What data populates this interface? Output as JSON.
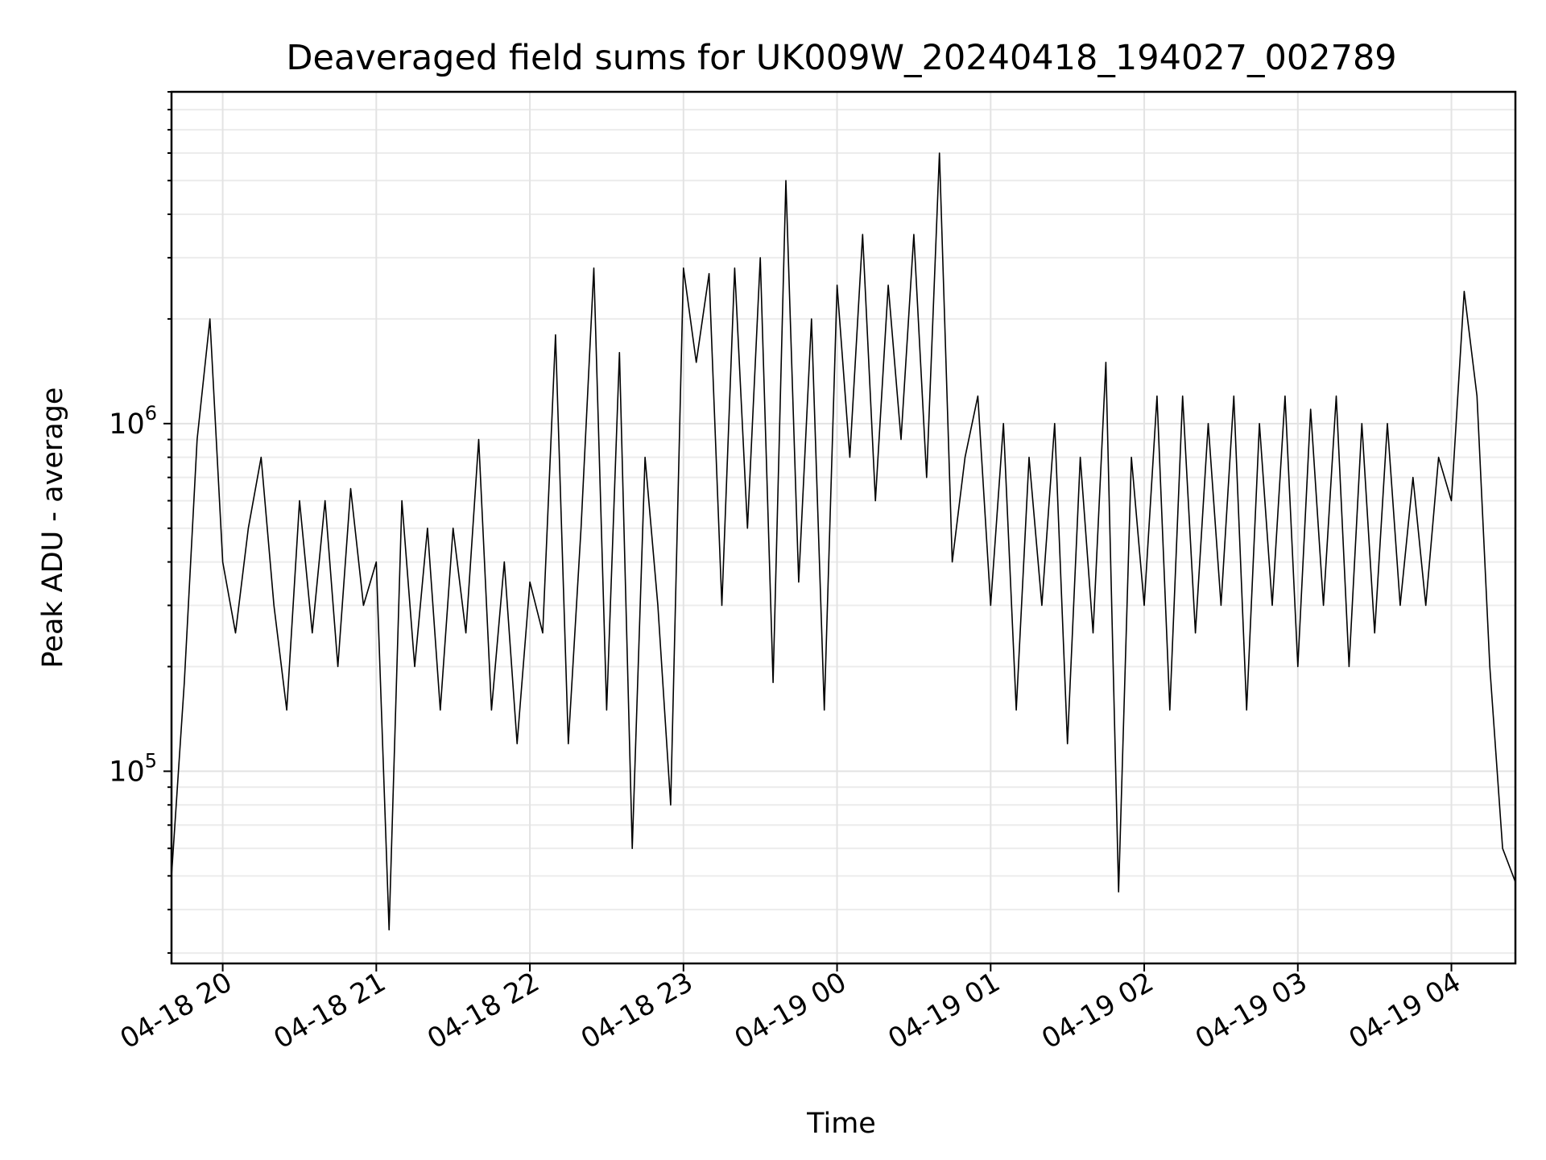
{
  "chart_data": {
    "type": "line",
    "title": "Deaveraged field sums for UK009W_20240418_194027_002789",
    "xlabel": "Time",
    "ylabel": "Peak ADU - average",
    "yscale": "log",
    "ylim": [
      28000,
      9000000
    ],
    "xlim": [
      "2024-04-18 19:40",
      "2024-04-19 04:25"
    ],
    "x_ticks": [
      "04-18 20",
      "04-18 21",
      "04-18 22",
      "04-18 23",
      "04-19 00",
      "04-19 01",
      "04-19 02",
      "04-19 03",
      "04-19 04"
    ],
    "y_ticks": [
      {
        "base": "10",
        "exp": "5",
        "value": 100000
      },
      {
        "base": "10",
        "exp": "6",
        "value": 1000000
      }
    ],
    "grid": true,
    "line_color": "#000000",
    "series": [
      {
        "x": [
          "2024-04-18 19:40",
          "2024-04-18 19:45",
          "2024-04-18 19:50",
          "2024-04-18 19:55",
          "2024-04-18 20:00",
          "2024-04-18 20:05",
          "2024-04-18 20:10",
          "2024-04-18 20:15",
          "2024-04-18 20:20",
          "2024-04-18 20:25",
          "2024-04-18 20:30",
          "2024-04-18 20:35",
          "2024-04-18 20:40",
          "2024-04-18 20:45",
          "2024-04-18 20:50",
          "2024-04-18 20:55",
          "2024-04-18 21:00",
          "2024-04-18 21:05",
          "2024-04-18 21:10",
          "2024-04-18 21:15",
          "2024-04-18 21:20",
          "2024-04-18 21:25",
          "2024-04-18 21:30",
          "2024-04-18 21:35",
          "2024-04-18 21:40",
          "2024-04-18 21:45",
          "2024-04-18 21:50",
          "2024-04-18 21:55",
          "2024-04-18 22:00",
          "2024-04-18 22:05",
          "2024-04-18 22:10",
          "2024-04-18 22:15",
          "2024-04-18 22:20",
          "2024-04-18 22:25",
          "2024-04-18 22:30",
          "2024-04-18 22:35",
          "2024-04-18 22:40",
          "2024-04-18 22:45",
          "2024-04-18 22:50",
          "2024-04-18 22:55",
          "2024-04-18 23:00",
          "2024-04-18 23:05",
          "2024-04-18 23:10",
          "2024-04-18 23:15",
          "2024-04-18 23:20",
          "2024-04-18 23:25",
          "2024-04-18 23:30",
          "2024-04-18 23:35",
          "2024-04-18 23:40",
          "2024-04-18 23:45",
          "2024-04-18 23:50",
          "2024-04-18 23:55",
          "2024-04-19 00:00",
          "2024-04-19 00:05",
          "2024-04-19 00:10",
          "2024-04-19 00:15",
          "2024-04-19 00:20",
          "2024-04-19 00:25",
          "2024-04-19 00:30",
          "2024-04-19 00:35",
          "2024-04-19 00:40",
          "2024-04-19 00:45",
          "2024-04-19 00:50",
          "2024-04-19 00:55",
          "2024-04-19 01:00",
          "2024-04-19 01:05",
          "2024-04-19 01:10",
          "2024-04-19 01:15",
          "2024-04-19 01:20",
          "2024-04-19 01:25",
          "2024-04-19 01:30",
          "2024-04-19 01:35",
          "2024-04-19 01:40",
          "2024-04-19 01:45",
          "2024-04-19 01:50",
          "2024-04-19 01:55",
          "2024-04-19 02:00",
          "2024-04-19 02:05",
          "2024-04-19 02:10",
          "2024-04-19 02:15",
          "2024-04-19 02:20",
          "2024-04-19 02:25",
          "2024-04-19 02:30",
          "2024-04-19 02:35",
          "2024-04-19 02:40",
          "2024-04-19 02:45",
          "2024-04-19 02:50",
          "2024-04-19 02:55",
          "2024-04-19 03:00",
          "2024-04-19 03:05",
          "2024-04-19 03:10",
          "2024-04-19 03:15",
          "2024-04-19 03:20",
          "2024-04-19 03:25",
          "2024-04-19 03:30",
          "2024-04-19 03:35",
          "2024-04-19 03:40",
          "2024-04-19 03:45",
          "2024-04-19 03:50",
          "2024-04-19 03:55",
          "2024-04-19 04:00",
          "2024-04-19 04:05",
          "2024-04-19 04:10",
          "2024-04-19 04:15",
          "2024-04-19 04:20",
          "2024-04-19 04:25"
        ],
        "y": [
          50000,
          180000,
          900000,
          2000000,
          400000,
          250000,
          500000,
          800000,
          300000,
          150000,
          600000,
          250000,
          600000,
          200000,
          650000,
          300000,
          400000,
          35000,
          600000,
          200000,
          500000,
          150000,
          500000,
          250000,
          900000,
          150000,
          400000,
          120000,
          350000,
          250000,
          1800000,
          120000,
          500000,
          2800000,
          150000,
          1600000,
          60000,
          800000,
          300000,
          80000,
          2800000,
          1500000,
          2700000,
          300000,
          2800000,
          500000,
          3000000,
          180000,
          5000000,
          350000,
          2000000,
          150000,
          2500000,
          800000,
          3500000,
          600000,
          2500000,
          900000,
          3500000,
          700000,
          6000000,
          400000,
          800000,
          1200000,
          300000,
          1000000,
          150000,
          800000,
          300000,
          1000000,
          120000,
          800000,
          250000,
          1500000,
          45000,
          800000,
          300000,
          1200000,
          150000,
          1200000,
          250000,
          1000000,
          300000,
          1200000,
          150000,
          1000000,
          300000,
          1200000,
          200000,
          1100000,
          300000,
          1200000,
          200000,
          1000000,
          250000,
          1000000,
          300000,
          700000,
          300000,
          800000,
          600000,
          2400000,
          1200000,
          200000,
          60000,
          48000
        ]
      }
    ]
  }
}
